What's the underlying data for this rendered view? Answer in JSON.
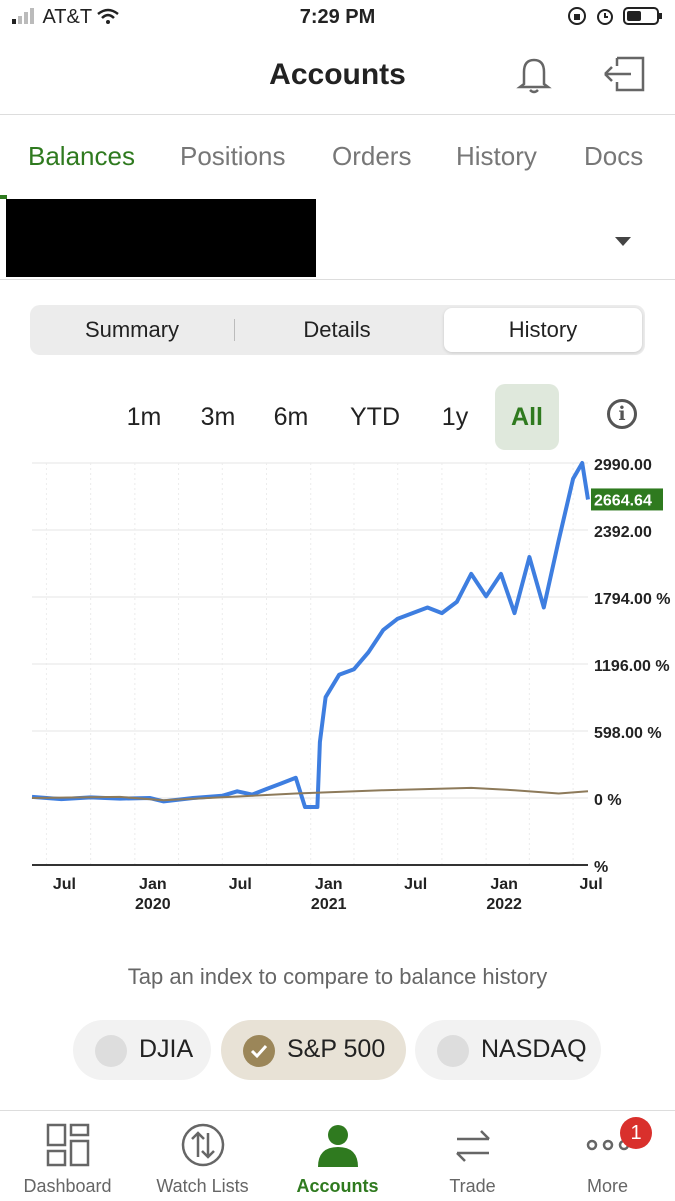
{
  "status_bar": {
    "carrier": "AT&T",
    "time": "7:29 PM"
  },
  "header": {
    "title": "Accounts",
    "bell_icon": "bell-icon",
    "logout_icon": "logout-icon"
  },
  "tabs": [
    {
      "label": "Balances",
      "active": true
    },
    {
      "label": "Positions"
    },
    {
      "label": "Orders"
    },
    {
      "label": "History"
    },
    {
      "label": "Docs"
    }
  ],
  "segments": [
    {
      "label": "Summary"
    },
    {
      "label": "Details"
    },
    {
      "label": "History",
      "selected": true
    }
  ],
  "ranges": [
    "1m",
    "3m",
    "6m",
    "YTD",
    "1y",
    "All"
  ],
  "selected_range": "All",
  "accent_color": "#2f7a1f",
  "chart_data": {
    "type": "line",
    "y_tick_labels": [
      "2990.00",
      "2392.00",
      "1794.00 %",
      "1196.00 %",
      "598.00 %",
      "0 %",
      "%"
    ],
    "current_value_label": "2664.64",
    "x_tick_labels": [
      {
        "month": "Jul",
        "year": ""
      },
      {
        "month": "Jan",
        "year": "2020"
      },
      {
        "month": "Jul",
        "year": ""
      },
      {
        "month": "Jan",
        "year": "2021"
      },
      {
        "month": "Jul",
        "year": ""
      },
      {
        "month": "Jan",
        "year": "2022"
      },
      {
        "month": "Jul",
        "year": ""
      }
    ],
    "x_range": [
      "2019-06",
      "2022-08"
    ],
    "ylim": [
      -598,
      2990
    ],
    "series": [
      {
        "color": "#3e7ee0",
        "points": [
          [
            "2019-06",
            10
          ],
          [
            "2019-08",
            -10
          ],
          [
            "2019-10",
            5
          ],
          [
            "2019-12",
            -5
          ],
          [
            "2020-02",
            0
          ],
          [
            "2020-03",
            -30
          ],
          [
            "2020-05",
            0
          ],
          [
            "2020-07",
            20
          ],
          [
            "2020-08",
            60
          ],
          [
            "2020-09",
            30
          ],
          [
            "2020-10",
            80
          ],
          [
            "2020-11",
            130
          ],
          [
            "2020-12",
            180
          ],
          [
            "2020-12-20",
            -80
          ],
          [
            "2021-01-15",
            -80
          ],
          [
            "2021-01-20",
            500
          ],
          [
            "2021-02",
            900
          ],
          [
            "2021-03",
            1100
          ],
          [
            "2021-04",
            1150
          ],
          [
            "2021-05",
            1300
          ],
          [
            "2021-06",
            1500
          ],
          [
            "2021-07",
            1600
          ],
          [
            "2021-08",
            1650
          ],
          [
            "2021-09",
            1700
          ],
          [
            "2021-10",
            1650
          ],
          [
            "2021-11",
            1750
          ],
          [
            "2021-12",
            2000
          ],
          [
            "2022-01",
            1800
          ],
          [
            "2022-02",
            2000
          ],
          [
            "2022-03",
            1650
          ],
          [
            "2022-04",
            2150
          ],
          [
            "2022-05",
            1700
          ],
          [
            "2022-06",
            2300
          ],
          [
            "2022-07",
            2850
          ],
          [
            "2022-07-20",
            2990
          ],
          [
            "2022-08",
            2664.64
          ]
        ]
      },
      {
        "color": "#8d7a5a",
        "points": [
          [
            "2019-06",
            0
          ],
          [
            "2019-12",
            10
          ],
          [
            "2020-03",
            -20
          ],
          [
            "2020-06",
            0
          ],
          [
            "2020-12",
            40
          ],
          [
            "2021-06",
            70
          ],
          [
            "2021-12",
            90
          ],
          [
            "2022-03",
            70
          ],
          [
            "2022-06",
            40
          ],
          [
            "2022-08",
            60
          ]
        ]
      }
    ]
  },
  "compare_prompt": "Tap an index to compare to balance history",
  "indexes": [
    {
      "label": "DJIA"
    },
    {
      "label": "S&P 500",
      "selected": true
    },
    {
      "label": "NASDAQ"
    }
  ],
  "bottom_nav": [
    {
      "label": "Dashboard",
      "icon": "dashboard-icon"
    },
    {
      "label": "Watch Lists",
      "icon": "watchlist-icon"
    },
    {
      "label": "Accounts",
      "icon": "accounts-icon",
      "active": true
    },
    {
      "label": "Trade",
      "icon": "trade-icon"
    },
    {
      "label": "More",
      "icon": "more-icon"
    }
  ],
  "more_badge": "1"
}
